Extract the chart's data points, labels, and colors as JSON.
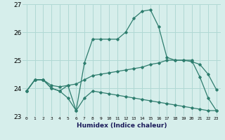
{
  "xlabel": "Humidex (Indice chaleur)",
  "x_values": [
    0,
    1,
    2,
    3,
    4,
    5,
    6,
    7,
    8,
    9,
    10,
    11,
    12,
    13,
    14,
    15,
    16,
    17,
    18,
    19,
    20,
    21,
    22,
    23
  ],
  "line_top": [
    23.9,
    24.3,
    24.3,
    24.0,
    23.9,
    24.1,
    23.2,
    24.9,
    25.75,
    25.75,
    25.75,
    25.75,
    26.0,
    26.5,
    26.75,
    26.8,
    26.2,
    25.1,
    25.0,
    25.0,
    25.0,
    24.4,
    23.65,
    23.2
  ],
  "line_mid": [
    23.9,
    24.3,
    24.3,
    24.1,
    24.05,
    24.1,
    24.15,
    24.3,
    24.45,
    24.5,
    24.55,
    24.6,
    24.65,
    24.7,
    24.75,
    24.85,
    24.9,
    25.0,
    25.0,
    25.0,
    24.95,
    24.85,
    24.5,
    23.95
  ],
  "line_bot": [
    23.9,
    24.3,
    24.3,
    24.0,
    23.9,
    23.65,
    23.2,
    23.65,
    23.9,
    23.85,
    23.8,
    23.75,
    23.7,
    23.65,
    23.6,
    23.55,
    23.5,
    23.45,
    23.4,
    23.35,
    23.3,
    23.25,
    23.2,
    23.2
  ],
  "line_color": "#2e7d6e",
  "bg_color": "#d6eeeb",
  "grid_color": "#b0d8d4",
  "ylim": [
    23.0,
    27.0
  ],
  "yticks": [
    23,
    24,
    25,
    26,
    27
  ]
}
